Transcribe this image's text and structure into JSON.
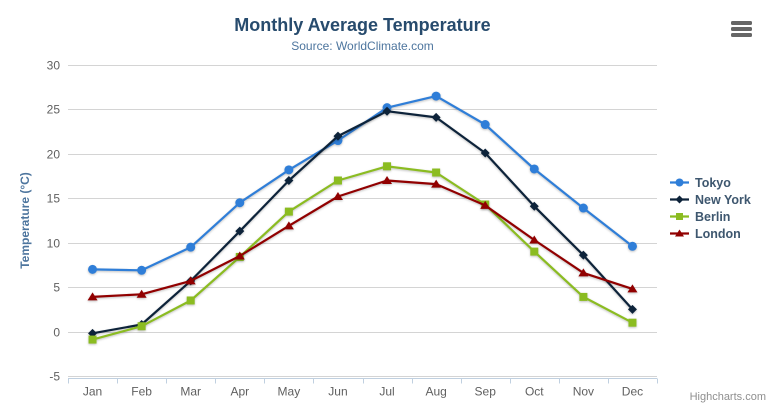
{
  "credits": "Highcharts.com",
  "export_menu": {
    "icon": "hamburger-menu-icon"
  },
  "colors": {
    "background": "#ffffff",
    "title_text": "#274b6d",
    "subtitle_text": "#4d759e",
    "axis_label_text": "#606060",
    "axis_line": "#c0d0e0",
    "gridline": "#d4d4d4",
    "y_axis_title_text": "#4d759e",
    "legend_text": "#3e576f",
    "credits_text": "#8f8f8f",
    "export_icon": "#666666"
  },
  "chart_data": {
    "type": "line",
    "title": "Monthly Average Temperature",
    "subtitle": "Source: WorldClimate.com",
    "xlabel": "",
    "ylabel": "Temperature (°C)",
    "categories": [
      "Jan",
      "Feb",
      "Mar",
      "Apr",
      "May",
      "Jun",
      "Jul",
      "Aug",
      "Sep",
      "Oct",
      "Nov",
      "Dec"
    ],
    "ylim": [
      -5,
      30
    ],
    "yticks": [
      -5,
      0,
      5,
      10,
      15,
      20,
      25,
      30
    ],
    "grid": true,
    "legend_position": "right-middle",
    "series": [
      {
        "name": "Tokyo",
        "color": "#2f7ed8",
        "marker": "circle",
        "values": [
          7.0,
          6.9,
          9.5,
          14.5,
          18.2,
          21.5,
          25.2,
          26.5,
          23.3,
          18.3,
          13.9,
          9.6
        ]
      },
      {
        "name": "New York",
        "color": "#0d233a",
        "marker": "diamond",
        "values": [
          -0.2,
          0.8,
          5.7,
          11.3,
          17.0,
          22.0,
          24.8,
          24.1,
          20.1,
          14.1,
          8.6,
          2.5
        ]
      },
      {
        "name": "Berlin",
        "color": "#8bbc21",
        "marker": "square",
        "values": [
          -0.9,
          0.6,
          3.5,
          8.4,
          13.5,
          17.0,
          18.6,
          17.9,
          14.3,
          9.0,
          3.9,
          1.0
        ]
      },
      {
        "name": "London",
        "color": "#910000",
        "marker": "triangle",
        "values": [
          3.9,
          4.2,
          5.7,
          8.5,
          11.9,
          15.2,
          17.0,
          16.6,
          14.2,
          10.3,
          6.6,
          4.8
        ]
      }
    ]
  }
}
